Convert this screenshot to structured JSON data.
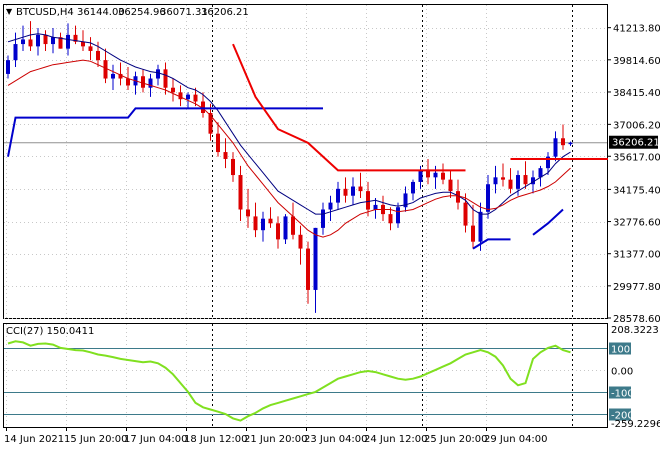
{
  "header": {
    "symbol": "BTCUSD,H4",
    "open": "36144.00",
    "high": "36254.96",
    "low": "36071.31",
    "close": "36206.21"
  },
  "oscillator": {
    "label": "CCI(27) 150.0411",
    "max_label": "208.3223",
    "min_label": "-259.2296",
    "levels": [
      "100",
      "0.00",
      "-100",
      "-200"
    ]
  },
  "colors": {
    "up": "#0000cc",
    "down": "#dd0000",
    "ma_fast": "#000080",
    "ma_slow": "#cc0000",
    "cci": "#80e020",
    "sar_up": "#0000cc",
    "sar_down": "#ee0000",
    "price_tag": "#000000"
  },
  "chart_data": [
    {
      "type": "candlestick",
      "title": "",
      "ylim": [
        28578.6,
        42200
      ],
      "y_ticks": [
        41213.8,
        39814.6,
        38415.4,
        37006.2,
        35617.0,
        34175.4,
        32776.6,
        31377.0,
        29977.8,
        28578.6
      ],
      "y_tick_labels": [
        "41213.80",
        "39814.60",
        "38415.40",
        "37006.20",
        "35617.00",
        "34175.40",
        "32776.60",
        "31377.00",
        "29977.80",
        "28578.60"
      ],
      "current_price": 36206.21,
      "current_price_label": "36206.21",
      "x_labels": [
        "14 Jun 2021",
        "15 Jun 20:00",
        "17 Jun 04:00",
        "18 Jun 12:00",
        "21 Jun 20:00",
        "23 Jun 04:00",
        "24 Jun 12:00",
        "25 Jun 20:00",
        "29 Jun 04:00"
      ],
      "candles": [
        [
          39200,
          40000,
          39000,
          39800
        ],
        [
          39800,
          41000,
          39500,
          40500
        ],
        [
          40500,
          41300,
          40200,
          40700
        ],
        [
          40700,
          41500,
          40200,
          40400
        ],
        [
          40400,
          41200,
          40000,
          40900
        ],
        [
          40900,
          41100,
          40200,
          40500
        ],
        [
          40500,
          41200,
          40100,
          40800
        ],
        [
          40800,
          41000,
          40300,
          40300
        ],
        [
          40300,
          41400,
          40000,
          40900
        ],
        [
          40900,
          41300,
          40500,
          40600
        ],
        [
          40600,
          41100,
          40200,
          40400
        ],
        [
          40400,
          40800,
          39800,
          40200
        ],
        [
          40200,
          40600,
          39500,
          39800
        ],
        [
          39800,
          40300,
          38800,
          39000
        ],
        [
          39000,
          39600,
          38500,
          39200
        ],
        [
          39200,
          39700,
          38700,
          39000
        ],
        [
          39000,
          39500,
          38500,
          38700
        ],
        [
          38700,
          39300,
          38300,
          39100
        ],
        [
          39100,
          39400,
          38400,
          38600
        ],
        [
          38600,
          39200,
          38200,
          39000
        ],
        [
          39000,
          39600,
          38700,
          39400
        ],
        [
          39400,
          39700,
          38300,
          38600
        ],
        [
          38600,
          39000,
          38000,
          38400
        ],
        [
          38400,
          38700,
          37800,
          38100
        ],
        [
          38100,
          38400,
          37700,
          38300
        ],
        [
          38300,
          38600,
          37800,
          38000
        ],
        [
          38000,
          38400,
          37300,
          37500
        ],
        [
          37500,
          37900,
          36300,
          36600
        ],
        [
          36600,
          37100,
          35600,
          35800
        ],
        [
          35800,
          36400,
          35100,
          35500
        ],
        [
          35500,
          35800,
          34500,
          34800
        ],
        [
          34800,
          35200,
          32800,
          33300
        ],
        [
          33300,
          34200,
          32500,
          33000
        ],
        [
          33000,
          33600,
          32100,
          32400
        ],
        [
          32400,
          33200,
          31900,
          32900
        ],
        [
          32900,
          33400,
          32500,
          32700
        ],
        [
          32700,
          33000,
          31600,
          32000
        ],
        [
          32000,
          33100,
          31800,
          33000
        ],
        [
          33000,
          33600,
          32000,
          32200
        ],
        [
          32200,
          32600,
          30900,
          31600
        ],
        [
          31600,
          31900,
          29200,
          29800
        ],
        [
          29800,
          32500,
          28800,
          32500
        ],
        [
          32500,
          33600,
          32200,
          33300
        ],
        [
          33300,
          33900,
          32800,
          33600
        ],
        [
          33600,
          34500,
          33300,
          34200
        ],
        [
          34200,
          34700,
          33600,
          33900
        ],
        [
          33900,
          34700,
          33500,
          34300
        ],
        [
          34300,
          34900,
          33800,
          34100
        ],
        [
          34100,
          34500,
          33000,
          33300
        ],
        [
          33300,
          33800,
          32900,
          33500
        ],
        [
          33500,
          33900,
          32800,
          33100
        ],
        [
          33100,
          33400,
          32400,
          32700
        ],
        [
          32700,
          33600,
          32500,
          33400
        ],
        [
          33400,
          34300,
          33200,
          34000
        ],
        [
          34000,
          34600,
          33700,
          34500
        ],
        [
          34500,
          35200,
          34200,
          35000
        ],
        [
          35000,
          35500,
          34400,
          34700
        ],
        [
          34700,
          35200,
          34200,
          34900
        ],
        [
          34900,
          35300,
          34400,
          34600
        ],
        [
          34600,
          35000,
          33800,
          34100
        ],
        [
          34100,
          34600,
          33300,
          33600
        ],
        [
          33600,
          34000,
          32300,
          32600
        ],
        [
          32600,
          33500,
          31600,
          31900
        ],
        [
          31900,
          33600,
          31500,
          33200
        ],
        [
          33200,
          34800,
          32900,
          34400
        ],
        [
          34400,
          35200,
          34000,
          34700
        ],
        [
          34700,
          35300,
          34300,
          34600
        ],
        [
          34600,
          35100,
          34000,
          34200
        ],
        [
          34200,
          35000,
          33900,
          34800
        ],
        [
          34800,
          35400,
          34200,
          34400
        ],
        [
          34400,
          35000,
          34000,
          34700
        ],
        [
          34700,
          35200,
          34300,
          35100
        ],
        [
          35100,
          35800,
          34800,
          35600
        ],
        [
          35600,
          36700,
          35400,
          36400
        ],
        [
          36400,
          37000,
          35900,
          36100
        ],
        [
          36144,
          36254.96,
          36071.31,
          36206.21
        ]
      ],
      "series": [
        {
          "type": "line",
          "values": [
            40600,
            40700,
            40800,
            40900,
            40950,
            40900,
            40800,
            40750,
            40700,
            40650,
            40600,
            40550,
            40400,
            40200,
            40000,
            39800,
            39650,
            39500,
            39400,
            39300,
            39250,
            39150,
            39000,
            38800,
            38600,
            38500,
            38300,
            38000,
            37600,
            37100,
            36600,
            36100,
            35700,
            35300,
            34900,
            34500,
            34100,
            33900,
            33700,
            33500,
            33300,
            33100,
            33100,
            33200,
            33300,
            33400,
            33500,
            33600,
            33650,
            33700,
            33600,
            33500,
            33450,
            33500,
            33600,
            33800,
            33900,
            34000,
            34050,
            34050,
            33900,
            33700,
            33300,
            33100,
            33100,
            33300,
            33600,
            33900,
            34100,
            34300,
            34500,
            34700,
            34900,
            35300,
            35600,
            35800
          ]
        },
        {
          "type": "line",
          "values": [
            38700,
            38900,
            39100,
            39300,
            39400,
            39500,
            39600,
            39650,
            39700,
            39750,
            39800,
            39750,
            39600,
            39450,
            39300,
            39150,
            39000,
            38900,
            38800,
            38700,
            38600,
            38500,
            38350,
            38200,
            38050,
            37900,
            37700,
            37400,
            37000,
            36600,
            36200,
            35700,
            35200,
            34800,
            34400,
            34000,
            33600,
            33300,
            33000,
            32700,
            32400,
            32200,
            32100,
            32200,
            32400,
            32700,
            32900,
            33100,
            33200,
            33300,
            33300,
            33300,
            33200,
            33250,
            33300,
            33450,
            33600,
            33750,
            33850,
            33900,
            33900,
            33800,
            33600,
            33400,
            33300,
            33350,
            33500,
            33700,
            33850,
            33950,
            34050,
            34150,
            34300,
            34500,
            34800,
            35100
          ]
        },
        {
          "type": "line",
          "segments": [
            [
              [
                0,
                35600
              ],
              [
                1,
                37300
              ],
              [
                16,
                37300
              ],
              [
                17,
                37700
              ],
              [
                42,
                37700
              ]
            ],
            [
              [
                62,
                31600
              ],
              [
                64,
                32000
              ],
              [
                67,
                32000
              ]
            ],
            [
              [
                70,
                32200
              ],
              [
                72,
                32700
              ],
              [
                74,
                33300
              ]
            ]
          ]
        },
        {
          "type": "line",
          "segments": [
            [
              [
                30,
                40500
              ],
              [
                33,
                38200
              ],
              [
                36,
                36800
              ],
              [
                40,
                36200
              ],
              [
                44,
                35000
              ],
              [
                61,
                35000
              ]
            ],
            [
              [
                67,
                35500
              ],
              [
                80,
                35500
              ]
            ]
          ]
        }
      ]
    },
    {
      "type": "line",
      "title": "",
      "ylim": [
        -259.2296,
        208.3223
      ],
      "levels": [
        100,
        0,
        -100,
        -200
      ],
      "values": [
        120,
        130,
        125,
        110,
        118,
        120,
        115,
        100,
        95,
        90,
        88,
        80,
        70,
        65,
        58,
        50,
        45,
        40,
        35,
        38,
        30,
        10,
        -20,
        -60,
        -100,
        -150,
        -170,
        -180,
        -190,
        -200,
        -220,
        -230,
        -210,
        -195,
        -175,
        -160,
        -150,
        -140,
        -130,
        -120,
        -110,
        -100,
        -80,
        -60,
        -40,
        -30,
        -20,
        -10,
        -5,
        -10,
        -20,
        -30,
        -40,
        -45,
        -40,
        -30,
        -15,
        0,
        15,
        30,
        50,
        70,
        80,
        90,
        80,
        60,
        20,
        -40,
        -70,
        -60,
        50,
        80,
        100,
        110,
        90,
        80
      ]
    }
  ]
}
